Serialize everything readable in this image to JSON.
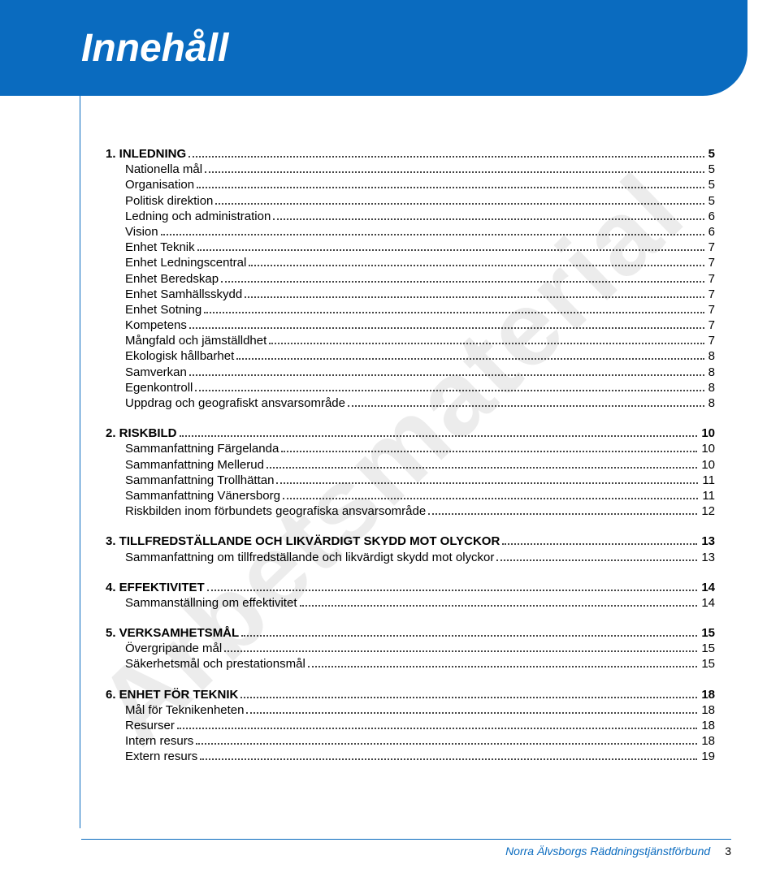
{
  "header": {
    "title": "Innehåll"
  },
  "watermark": "Arbetsmaterial",
  "toc": [
    {
      "type": "group",
      "items": [
        {
          "level": "section",
          "label": "1. INLEDNING",
          "page": "5"
        },
        {
          "level": "sub",
          "label": "Nationella mål",
          "page": "5"
        },
        {
          "level": "sub",
          "label": "Organisation",
          "page": "5"
        },
        {
          "level": "sub",
          "label": "Politisk direktion",
          "page": "5"
        },
        {
          "level": "sub",
          "label": "Ledning och administration",
          "page": "6"
        },
        {
          "level": "sub",
          "label": "Vision",
          "page": "6"
        },
        {
          "level": "sub",
          "label": "Enhet Teknik",
          "page": "7"
        },
        {
          "level": "sub",
          "label": "Enhet Ledningscentral",
          "page": "7"
        },
        {
          "level": "sub",
          "label": "Enhet Beredskap",
          "page": "7"
        },
        {
          "level": "sub",
          "label": "Enhet Samhällsskydd",
          "page": "7"
        },
        {
          "level": "sub",
          "label": "Enhet Sotning",
          "page": "7"
        },
        {
          "level": "sub",
          "label": "Kompetens",
          "page": "7"
        },
        {
          "level": "sub",
          "label": "Mångfald och jämställdhet",
          "page": "7"
        },
        {
          "level": "sub",
          "label": "Ekologisk hållbarhet",
          "page": "8"
        },
        {
          "level": "sub",
          "label": "Samverkan",
          "page": "8"
        },
        {
          "level": "sub",
          "label": "Egenkontroll",
          "page": "8"
        },
        {
          "level": "sub",
          "label": "Uppdrag och geografiskt ansvarsområde",
          "page": "8"
        }
      ]
    },
    {
      "type": "group",
      "items": [
        {
          "level": "section",
          "label": "2. RISKBILD",
          "page": "10"
        },
        {
          "level": "sub",
          "label": "Sammanfattning Färgelanda",
          "page": "10"
        },
        {
          "level": "sub",
          "label": "Sammanfattning Mellerud",
          "page": "10"
        },
        {
          "level": "sub",
          "label": "Sammanfattning Trollhättan",
          "page": "11"
        },
        {
          "level": "sub",
          "label": "Sammanfattning Vänersborg",
          "page": "11"
        },
        {
          "level": "sub",
          "label": "Riskbilden inom förbundets geografiska ansvarsområde",
          "page": "12"
        }
      ]
    },
    {
      "type": "group",
      "items": [
        {
          "level": "section",
          "label": "3. TILLFREDSTÄLLANDE OCH LIKVÄRDIGT SKYDD MOT OLYCKOR",
          "page": "13"
        },
        {
          "level": "sub",
          "label": "Sammanfattning om tillfredställande och likvärdigt skydd mot olyckor",
          "page": "13"
        }
      ]
    },
    {
      "type": "group",
      "items": [
        {
          "level": "section",
          "label": "4. EFFEKTIVITET",
          "page": "14"
        },
        {
          "level": "sub",
          "label": "Sammanställning om effektivitet",
          "page": "14"
        }
      ]
    },
    {
      "type": "group",
      "items": [
        {
          "level": "section",
          "label": "5. VERKSAMHETSMÅL",
          "page": "15"
        },
        {
          "level": "sub",
          "label": "Övergripande mål",
          "page": "15"
        },
        {
          "level": "sub",
          "label": "Säkerhetsmål och prestationsmål",
          "page": "15"
        }
      ]
    },
    {
      "type": "group",
      "items": [
        {
          "level": "section",
          "label": "6. ENHET FÖR TEKNIK",
          "page": "18"
        },
        {
          "level": "sub",
          "label": "Mål för Teknikenheten",
          "page": "18"
        },
        {
          "level": "sub",
          "label": "Resurser",
          "page": "18"
        },
        {
          "level": "sub",
          "label": "Intern resurs",
          "page": "18"
        },
        {
          "level": "sub",
          "label": "Extern resurs",
          "page": "19"
        }
      ]
    }
  ],
  "footer": {
    "org": "Norra Älvsborgs Räddningstjänstförbund",
    "page_number": "3"
  }
}
